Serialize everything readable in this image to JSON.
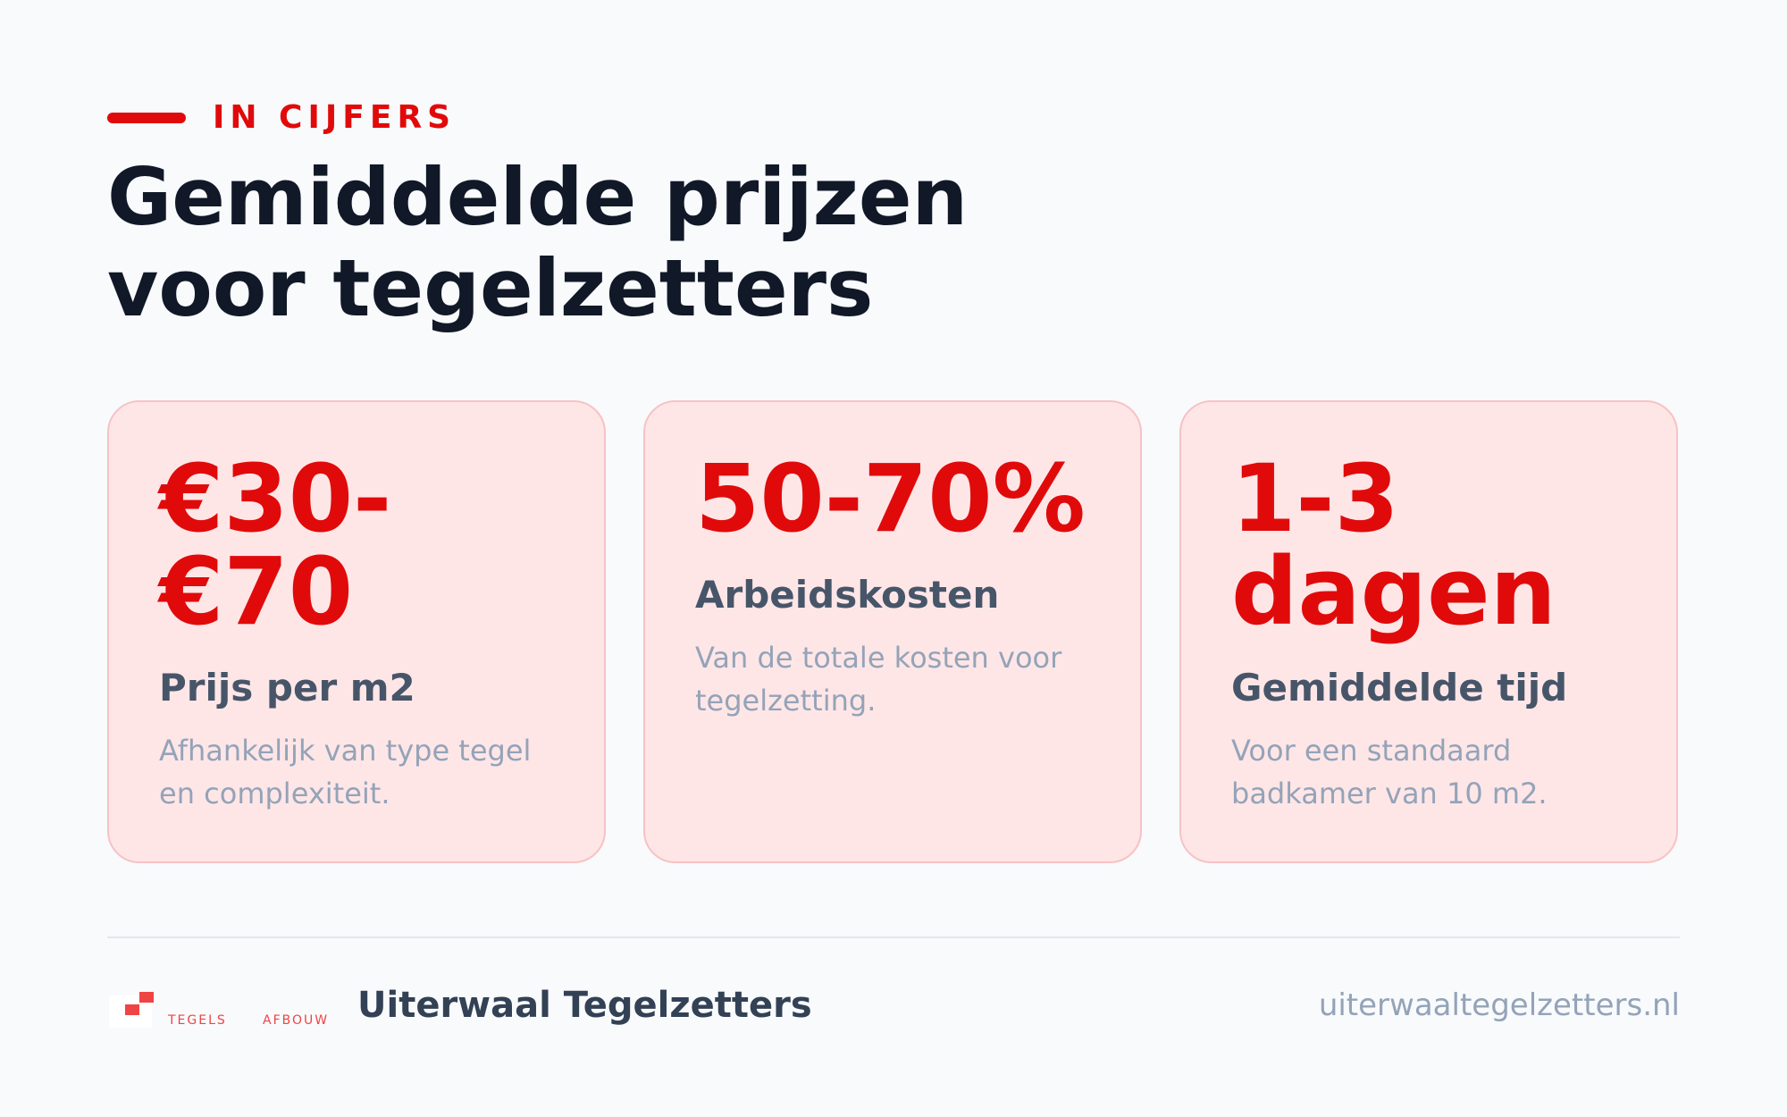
{
  "eyebrow": {
    "label": "IN CIJFERS"
  },
  "heading": {
    "line1": "Gemiddelde prijzen",
    "line2": "voor tegelzetters"
  },
  "accent_color": "#e10a0a",
  "cards": [
    {
      "stat_line1": "€30-",
      "stat_line2": "€70",
      "title": "Prijs per m2",
      "desc_line1": "Afhankelijk van type tegel",
      "desc_line2": "en complexiteit."
    },
    {
      "stat_line1": "50-70%",
      "title": "Arbeidskosten",
      "desc_line1": "Van de totale kosten voor",
      "desc_line2": "tegelzetting."
    },
    {
      "stat_line1": "1-3",
      "stat_line2": "dagen",
      "title": "Gemiddelde tijd",
      "desc_line1": "Voor een standaard",
      "desc_line2": "badkamer van 10 m2."
    }
  ],
  "footer": {
    "logo": {
      "icon": "tile-squares-logo",
      "word1": "TEGELS",
      "word2": "AFBOUW"
    },
    "brand_name": "Uiterwaal Tegelzetters",
    "url": "uiterwaaltegelzetters.nl"
  }
}
